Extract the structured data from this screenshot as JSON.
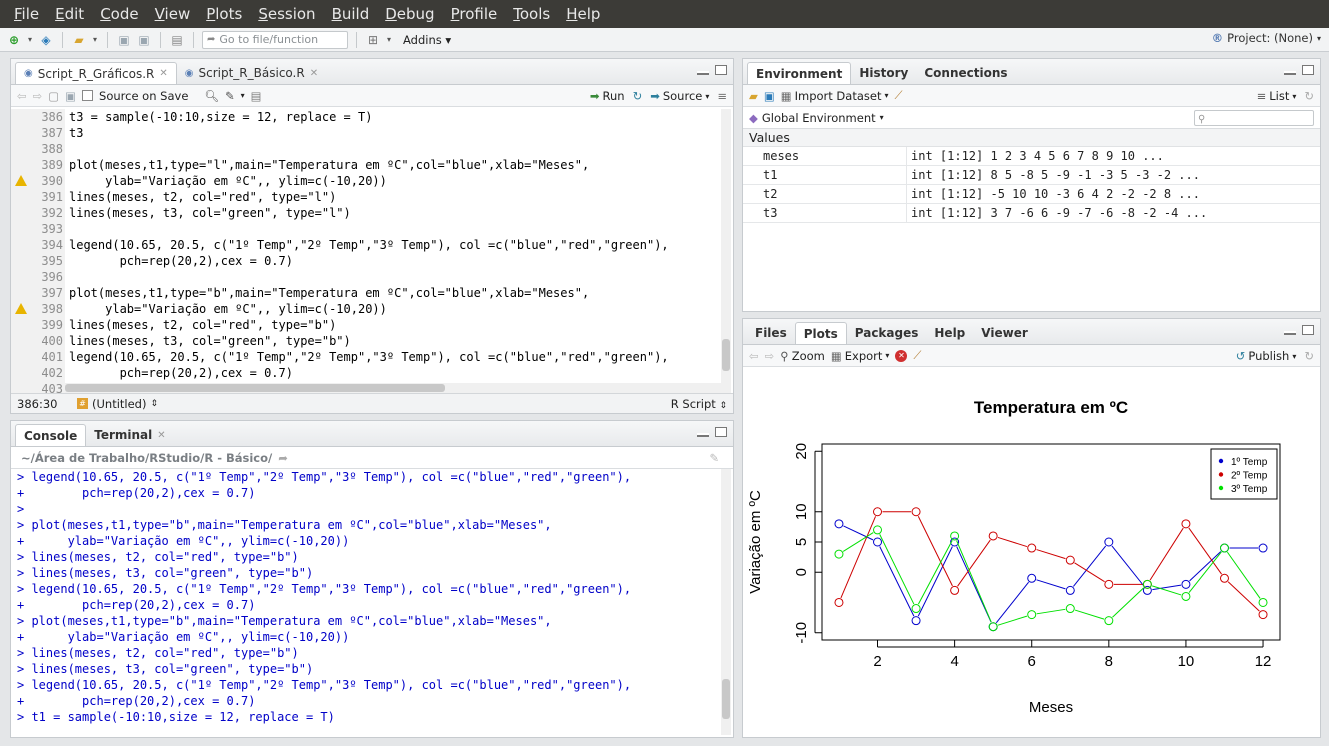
{
  "menu": [
    "File",
    "Edit",
    "Code",
    "View",
    "Plots",
    "Session",
    "Build",
    "Debug",
    "Profile",
    "Tools",
    "Help"
  ],
  "toolbar": {
    "goto_placeholder": "Go to file/function",
    "addins_label": "Addins",
    "project_label": "Project: (None)"
  },
  "editor": {
    "tabs": [
      {
        "label": "Script_R_Gráficos.R",
        "active": true
      },
      {
        "label": "Script_R_Básico.R",
        "active": false
      }
    ],
    "source_on_save": "Source on Save",
    "run_label": "Run",
    "source_label": "Source",
    "lines": [
      {
        "num": "386",
        "text": "t3 = sample(-10:10,size = 12, replace = T)",
        "warn": false
      },
      {
        "num": "387",
        "text": "t3",
        "warn": false
      },
      {
        "num": "388",
        "text": "",
        "warn": false
      },
      {
        "num": "389",
        "text": "plot(meses,t1,type=\"l\",main=\"Temperatura em ºC\",col=\"blue\",xlab=\"Meses\",",
        "warn": false
      },
      {
        "num": "390",
        "text": "     ylab=\"Variação em ºC\",, ylim=c(-10,20))",
        "warn": true
      },
      {
        "num": "391",
        "text": "lines(meses, t2, col=\"red\", type=\"l\")",
        "warn": false
      },
      {
        "num": "392",
        "text": "lines(meses, t3, col=\"green\", type=\"l\")",
        "warn": false
      },
      {
        "num": "393",
        "text": "",
        "warn": false
      },
      {
        "num": "394",
        "text": "legend(10.65, 20.5, c(\"1º Temp\",\"2º Temp\",\"3º Temp\"), col =c(\"blue\",\"red\",\"green\"),",
        "warn": false
      },
      {
        "num": "395",
        "text": "       pch=rep(20,2),cex = 0.7)",
        "warn": false
      },
      {
        "num": "396",
        "text": "",
        "warn": false
      },
      {
        "num": "397",
        "text": "plot(meses,t1,type=\"b\",main=\"Temperatura em ºC\",col=\"blue\",xlab=\"Meses\",",
        "warn": false
      },
      {
        "num": "398",
        "text": "     ylab=\"Variação em ºC\",, ylim=c(-10,20))",
        "warn": true
      },
      {
        "num": "399",
        "text": "lines(meses, t2, col=\"red\", type=\"b\")",
        "warn": false
      },
      {
        "num": "400",
        "text": "lines(meses, t3, col=\"green\", type=\"b\")",
        "warn": false
      },
      {
        "num": "401",
        "text": "legend(10.65, 20.5, c(\"1º Temp\",\"2º Temp\",\"3º Temp\"), col =c(\"blue\",\"red\",\"green\"),",
        "warn": false
      },
      {
        "num": "402",
        "text": "       pch=rep(20,2),cex = 0.7)",
        "warn": false
      },
      {
        "num": "403",
        "text": "",
        "warn": false
      }
    ],
    "status_pos": "386:30",
    "status_context": "(Untitled)",
    "status_filetype": "R Script"
  },
  "console": {
    "tabs": [
      {
        "label": "Console",
        "active": true
      },
      {
        "label": "Terminal",
        "active": false
      }
    ],
    "path": "~/Área de Trabalho/RStudio/R - Básico/",
    "lines": [
      "> legend(10.65, 20.5, c(\"1º Temp\",\"2º Temp\",\"3º Temp\"), col =c(\"blue\",\"red\",\"green\"),",
      "+        pch=rep(20,2),cex = 0.7)",
      ">",
      "> plot(meses,t1,type=\"b\",main=\"Temperatura em ºC\",col=\"blue\",xlab=\"Meses\",",
      "+      ylab=\"Variação em ºC\",, ylim=c(-10,20))",
      "> lines(meses, t2, col=\"red\", type=\"b\")",
      "> lines(meses, t3, col=\"green\", type=\"b\")",
      "> legend(10.65, 20.5, c(\"1º Temp\",\"2º Temp\",\"3º Temp\"), col =c(\"blue\",\"red\",\"green\"),",
      "+        pch=rep(20,2),cex = 0.7)",
      "> plot(meses,t1,type=\"b\",main=\"Temperatura em ºC\",col=\"blue\",xlab=\"Meses\",",
      "+      ylab=\"Variação em ºC\",, ylim=c(-10,20))",
      "> lines(meses, t2, col=\"red\", type=\"b\")",
      "> lines(meses, t3, col=\"green\", type=\"b\")",
      "> legend(10.65, 20.5, c(\"1º Temp\",\"2º Temp\",\"3º Temp\"), col =c(\"blue\",\"red\",\"green\"),",
      "+        pch=rep(20,2),cex = 0.7)",
      "> t1 = sample(-10:10,size = 12, replace = T)"
    ]
  },
  "environment": {
    "tabs": [
      "Environment",
      "History",
      "Connections"
    ],
    "import_label": "Import Dataset",
    "list_label": "List",
    "scope_label": "Global Environment",
    "values_header": "Values",
    "rows": [
      {
        "name": "meses",
        "value": "int [1:12] 1 2 3 4 5 6 7 8 9 10 ..."
      },
      {
        "name": "t1",
        "value": "int [1:12] 8 5 -8 5 -9 -1 -3 5 -3 -2 ..."
      },
      {
        "name": "t2",
        "value": "int [1:12] -5 10 10 -3 6 4 2 -2 -2 8 ..."
      },
      {
        "name": "t3",
        "value": "int [1:12] 3 7 -6 6 -9 -7 -6 -8 -2 -4 ..."
      }
    ]
  },
  "plots": {
    "tabs": [
      "Files",
      "Plots",
      "Packages",
      "Help",
      "Viewer"
    ],
    "active_tab": "Plots",
    "zoom_label": "Zoom",
    "export_label": "Export",
    "publish_label": "Publish"
  },
  "chart_data": {
    "type": "line",
    "title": "Temperatura em ºC",
    "xlabel": "Meses",
    "ylabel": "Variação em ºC",
    "x": [
      1,
      2,
      3,
      4,
      5,
      6,
      7,
      8,
      9,
      10,
      11,
      12
    ],
    "xlim": [
      0.56,
      12.44
    ],
    "ylim": [
      -11.2,
      21.2
    ],
    "xticks": [
      2,
      4,
      6,
      8,
      10,
      12
    ],
    "yticks": [
      -10,
      0,
      5,
      10,
      20
    ],
    "series": [
      {
        "name": "1º Temp",
        "color": "#0000cd",
        "values": [
          8,
          5,
          -8,
          5,
          -9,
          -1,
          -3,
          5,
          -3,
          -2,
          4,
          4
        ]
      },
      {
        "name": "2º Temp",
        "color": "#cd0000",
        "values": [
          -5,
          10,
          10,
          -3,
          6,
          4,
          2,
          -2,
          -2,
          8,
          -1,
          -7
        ]
      },
      {
        "name": "3º Temp",
        "color": "#00e000",
        "values": [
          3,
          7,
          -6,
          6,
          -9,
          -7,
          -6,
          -8,
          -2,
          -4,
          4,
          -5
        ]
      }
    ],
    "legend_position": "top-right"
  }
}
